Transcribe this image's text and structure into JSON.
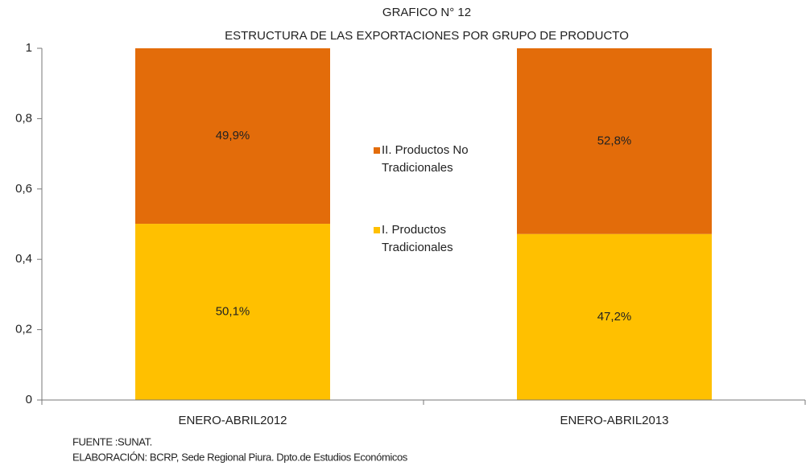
{
  "chart_data": {
    "type": "stacked_bar",
    "title": "GRAFICO N° 12",
    "subtitle": "ESTRUCTURA DE LAS EXPORTACIONES  POR GRUPO DE PRODUCTO",
    "categories": [
      "ENERO-ABRIL2012",
      "ENERO-ABRIL2013"
    ],
    "series": [
      {
        "name": "I. Productos Tradicionales",
        "color": "#ffc000",
        "values": [
          0.501,
          0.472
        ],
        "value_labels": [
          "50,1%",
          "47,2%"
        ]
      },
      {
        "name": "II. Productos No Tradicionales",
        "color": "#e36c0a",
        "values": [
          0.499,
          0.528
        ],
        "value_labels": [
          "49,9%",
          "52,8%"
        ]
      }
    ],
    "ylim": [
      0,
      1
    ],
    "yticks": [
      0,
      {
        "value": 0.2,
        "label": "0,2"
      },
      {
        "value": 0.4,
        "label": "0,4"
      },
      {
        "value": 0.6,
        "label": "0,6"
      },
      {
        "value": 0.8,
        "label": "0,8"
      },
      1
    ],
    "legend": "center",
    "notes": [
      "FUENTE :SUNAT.",
      "ELABORACIÓN: BCRP, Sede Regional Piura. Dpto.de Estudios Económicos"
    ]
  }
}
